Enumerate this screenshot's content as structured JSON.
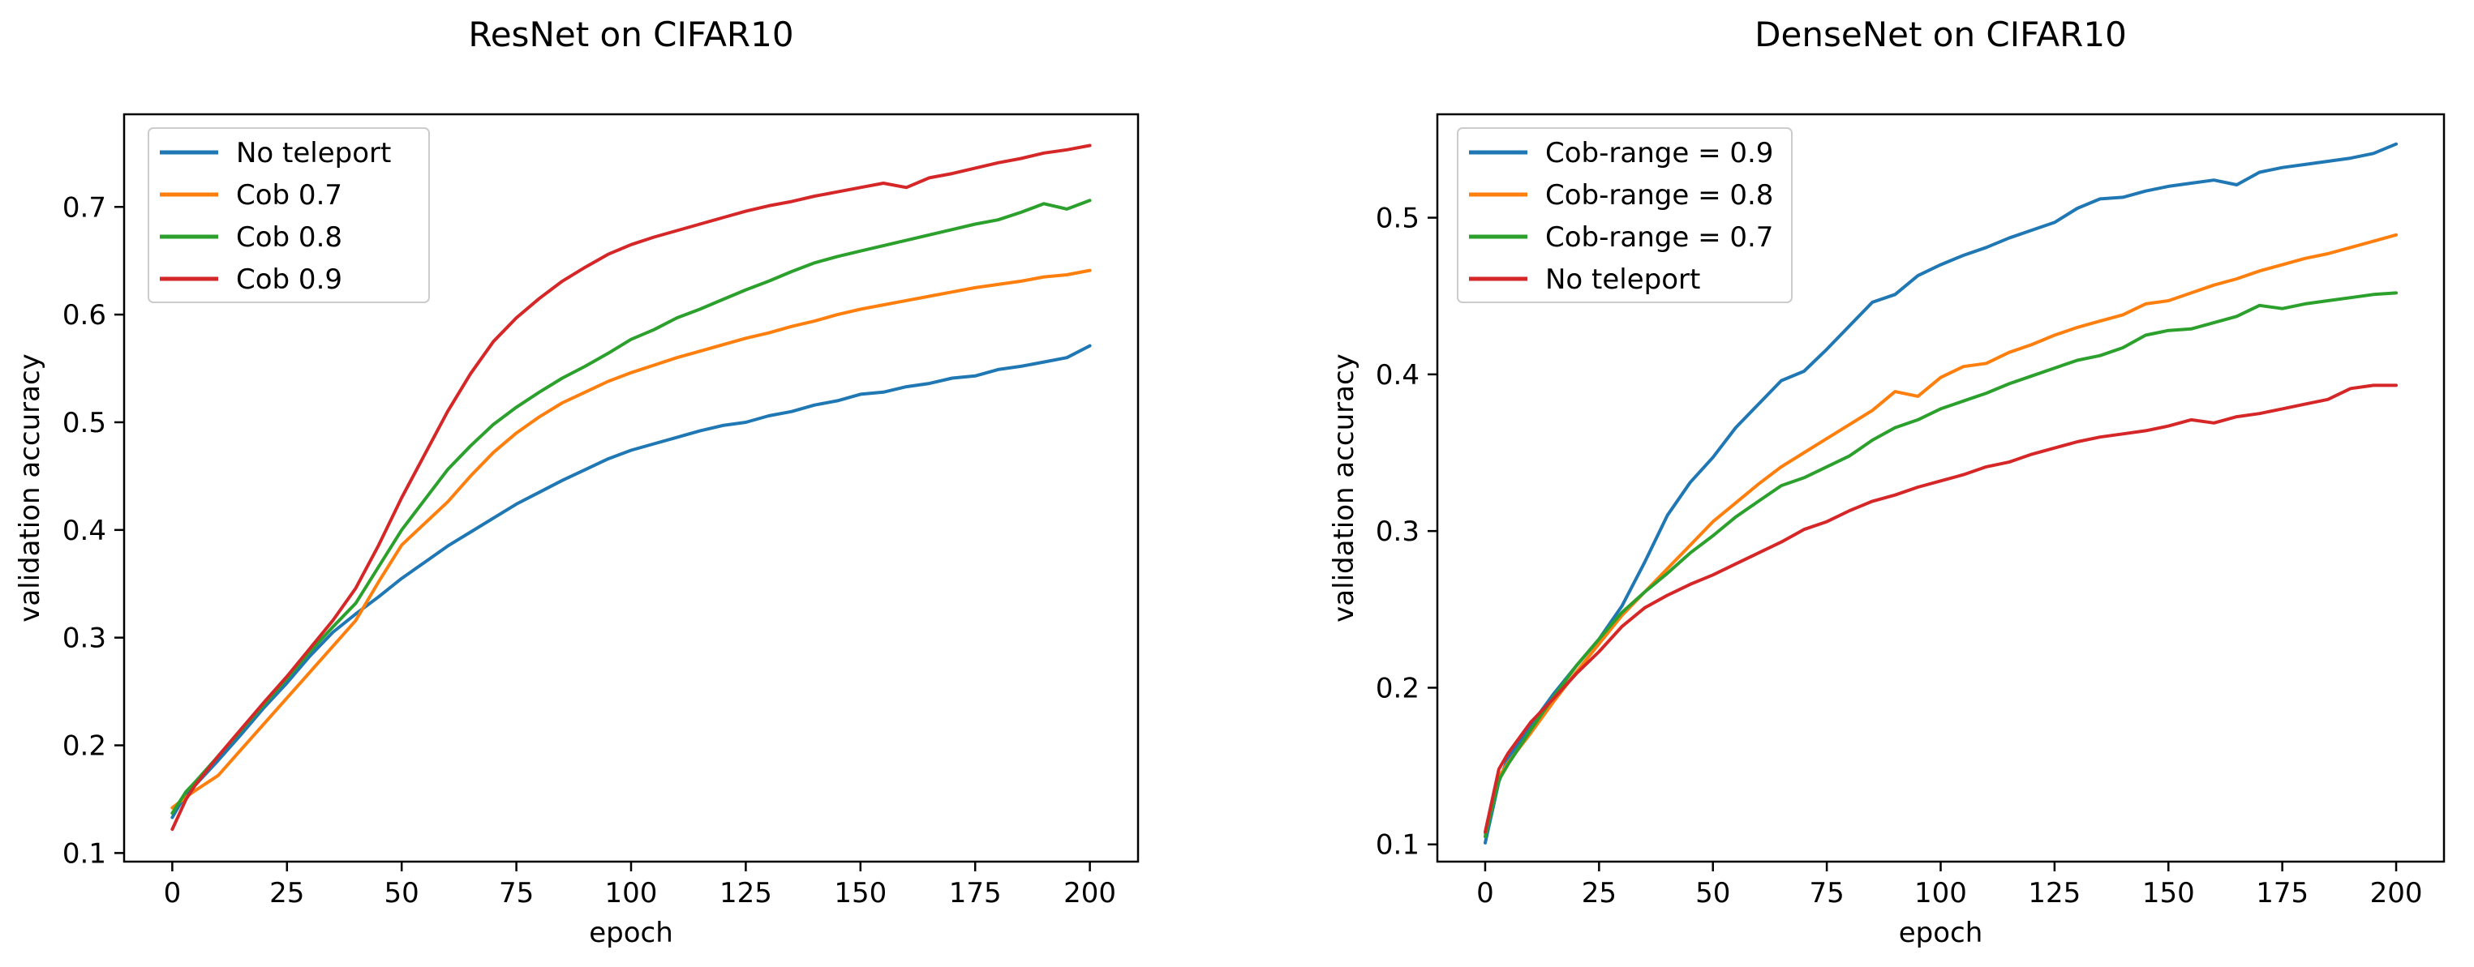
{
  "figure": {
    "background": "#ffffff",
    "frame_color": "#000000",
    "text_color": "#000000",
    "legend_border_color": "#cccccc",
    "legend_background": "#ffffff"
  },
  "chart_data": [
    {
      "type": "line",
      "title": "ResNet on CIFAR10",
      "xlabel": "epoch",
      "ylabel": "validation accuracy",
      "xlim": [
        -10.5,
        210.5
      ],
      "ylim": [
        0.092,
        0.786
      ],
      "xticks": [
        0,
        25,
        50,
        75,
        100,
        125,
        150,
        175,
        200
      ],
      "yticks": [
        0.1,
        0.2,
        0.3,
        0.4,
        0.5,
        0.6,
        0.7
      ],
      "grid": false,
      "legend_position": "upper left",
      "x": [
        0,
        3,
        5,
        10,
        15,
        20,
        25,
        30,
        35,
        40,
        45,
        50,
        55,
        60,
        65,
        70,
        75,
        80,
        85,
        90,
        95,
        100,
        105,
        110,
        115,
        120,
        125,
        130,
        135,
        140,
        145,
        150,
        155,
        160,
        165,
        170,
        175,
        180,
        185,
        190,
        195,
        200
      ],
      "series": [
        {
          "name": "No teleport",
          "color": "#1f77b4",
          "y": [
            0.133,
            0.155,
            0.163,
            0.186,
            0.21,
            0.235,
            0.258,
            0.283,
            0.305,
            0.322,
            0.338,
            0.355,
            0.37,
            0.385,
            0.398,
            0.411,
            0.424,
            0.435,
            0.446,
            0.456,
            0.466,
            0.474,
            0.48,
            0.486,
            0.492,
            0.497,
            0.5,
            0.506,
            0.51,
            0.516,
            0.52,
            0.526,
            0.528,
            0.533,
            0.536,
            0.541,
            0.543,
            0.549,
            0.552,
            0.556,
            0.56,
            0.571
          ]
        },
        {
          "name": "Cob 0.7",
          "color": "#ff7f0e",
          "y": [
            0.142,
            0.152,
            0.158,
            0.172,
            0.196,
            0.22,
            0.244,
            0.268,
            0.292,
            0.316,
            0.352,
            0.386,
            0.406,
            0.426,
            0.45,
            0.472,
            0.49,
            0.505,
            0.518,
            0.528,
            0.538,
            0.546,
            0.553,
            0.56,
            0.566,
            0.572,
            0.578,
            0.583,
            0.589,
            0.594,
            0.6,
            0.605,
            0.609,
            0.613,
            0.617,
            0.621,
            0.625,
            0.628,
            0.631,
            0.635,
            0.637,
            0.641
          ]
        },
        {
          "name": "Cob 0.8",
          "color": "#2ca02c",
          "y": [
            0.137,
            0.157,
            0.166,
            0.19,
            0.214,
            0.238,
            0.262,
            0.287,
            0.31,
            0.332,
            0.366,
            0.4,
            0.428,
            0.456,
            0.478,
            0.498,
            0.514,
            0.528,
            0.541,
            0.552,
            0.564,
            0.577,
            0.586,
            0.597,
            0.605,
            0.614,
            0.623,
            0.631,
            0.64,
            0.648,
            0.654,
            0.659,
            0.664,
            0.669,
            0.674,
            0.679,
            0.684,
            0.688,
            0.695,
            0.703,
            0.698,
            0.706
          ]
        },
        {
          "name": "Cob 0.9",
          "color": "#d62728",
          "y": [
            0.122,
            0.15,
            0.163,
            0.19,
            0.215,
            0.24,
            0.264,
            0.29,
            0.316,
            0.346,
            0.386,
            0.43,
            0.47,
            0.51,
            0.545,
            0.575,
            0.597,
            0.615,
            0.631,
            0.644,
            0.656,
            0.665,
            0.672,
            0.678,
            0.684,
            0.69,
            0.696,
            0.701,
            0.705,
            0.71,
            0.714,
            0.718,
            0.722,
            0.718,
            0.727,
            0.731,
            0.736,
            0.741,
            0.745,
            0.75,
            0.753,
            0.757
          ]
        }
      ]
    },
    {
      "type": "line",
      "title": "DenseNet on CIFAR10",
      "xlabel": "epoch",
      "ylabel": "validation accuracy",
      "xlim": [
        -10.5,
        210.5
      ],
      "ylim": [
        0.089,
        0.566
      ],
      "xticks": [
        0,
        25,
        50,
        75,
        100,
        125,
        150,
        175,
        200
      ],
      "yticks": [
        0.1,
        0.2,
        0.3,
        0.4,
        0.5
      ],
      "grid": false,
      "legend_position": "upper left",
      "x": [
        0,
        3,
        5,
        10,
        15,
        20,
        25,
        30,
        35,
        40,
        45,
        50,
        55,
        60,
        65,
        70,
        75,
        80,
        85,
        90,
        95,
        100,
        105,
        110,
        115,
        120,
        125,
        130,
        135,
        140,
        145,
        150,
        155,
        160,
        165,
        170,
        175,
        180,
        185,
        190,
        195,
        200
      ],
      "series": [
        {
          "name": "Cob-range = 0.9",
          "color": "#1f77b4",
          "y": [
            0.101,
            0.14,
            0.155,
            0.176,
            0.196,
            0.214,
            0.231,
            0.252,
            0.28,
            0.31,
            0.331,
            0.347,
            0.366,
            0.381,
            0.396,
            0.402,
            0.416,
            0.431,
            0.446,
            0.451,
            0.463,
            0.47,
            0.476,
            0.481,
            0.487,
            0.492,
            0.497,
            0.506,
            0.512,
            0.513,
            0.517,
            0.52,
            0.522,
            0.524,
            0.521,
            0.529,
            0.532,
            0.534,
            0.536,
            0.538,
            0.541,
            0.547
          ]
        },
        {
          "name": "Cob-range = 0.8",
          "color": "#ff7f0e",
          "y": [
            0.107,
            0.143,
            0.152,
            0.171,
            0.191,
            0.21,
            0.228,
            0.246,
            0.261,
            0.276,
            0.291,
            0.306,
            0.318,
            0.33,
            0.341,
            0.35,
            0.359,
            0.368,
            0.377,
            0.389,
            0.386,
            0.398,
            0.405,
            0.407,
            0.414,
            0.419,
            0.425,
            0.43,
            0.434,
            0.438,
            0.445,
            0.447,
            0.452,
            0.457,
            0.461,
            0.466,
            0.47,
            0.474,
            0.477,
            0.481,
            0.485,
            0.489
          ]
        },
        {
          "name": "Cob-range = 0.7",
          "color": "#2ca02c",
          "y": [
            0.105,
            0.141,
            0.151,
            0.173,
            0.194,
            0.214,
            0.231,
            0.248,
            0.261,
            0.273,
            0.286,
            0.297,
            0.309,
            0.319,
            0.329,
            0.334,
            0.341,
            0.348,
            0.358,
            0.366,
            0.371,
            0.378,
            0.383,
            0.388,
            0.394,
            0.399,
            0.404,
            0.409,
            0.412,
            0.417,
            0.425,
            0.428,
            0.429,
            0.433,
            0.437,
            0.444,
            0.442,
            0.445,
            0.447,
            0.449,
            0.451,
            0.452
          ]
        },
        {
          "name": "No teleport",
          "color": "#d62728",
          "y": [
            0.108,
            0.148,
            0.158,
            0.178,
            0.193,
            0.209,
            0.223,
            0.239,
            0.251,
            0.259,
            0.266,
            0.272,
            0.279,
            0.286,
            0.293,
            0.301,
            0.306,
            0.313,
            0.319,
            0.323,
            0.328,
            0.332,
            0.336,
            0.341,
            0.344,
            0.349,
            0.353,
            0.357,
            0.36,
            0.362,
            0.364,
            0.367,
            0.371,
            0.369,
            0.373,
            0.375,
            0.378,
            0.381,
            0.384,
            0.391,
            0.393,
            0.393
          ]
        }
      ]
    }
  ]
}
